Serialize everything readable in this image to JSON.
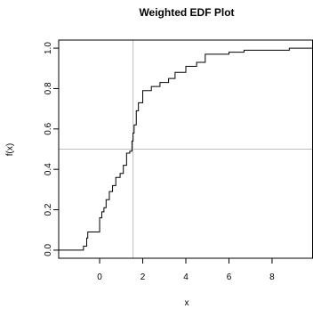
{
  "chart_data": {
    "type": "line",
    "title": "Weighted EDF Plot",
    "xlabel": "x",
    "ylabel": "f(x)",
    "xlim": [
      -1.9,
      9.9
    ],
    "ylim": [
      -0.04,
      1.04
    ],
    "x_ticks": [
      0,
      2,
      4,
      6,
      8
    ],
    "x_tick_labels": [
      "0",
      "2",
      "4",
      "6",
      "8"
    ],
    "y_ticks": [
      0.0,
      0.2,
      0.4,
      0.6,
      0.8,
      1.0
    ],
    "y_tick_labels": [
      "0.0",
      "0.2",
      "0.4",
      "0.6",
      "0.8",
      "1.0"
    ],
    "grid": false,
    "reference_lines": {
      "vertical_x": 1.55,
      "horizontal_y": 0.5
    },
    "series": [
      {
        "step": "post",
        "x": [
          -1.9,
          -0.75,
          -0.6,
          -0.55,
          0.0,
          0.1,
          0.2,
          0.3,
          0.45,
          0.6,
          0.75,
          0.95,
          1.1,
          1.25,
          1.4,
          1.5,
          1.55,
          1.6,
          1.7,
          1.8,
          2.0,
          2.4,
          2.8,
          3.2,
          3.5,
          4.0,
          4.5,
          4.9,
          6.0,
          6.7,
          8.8,
          9.9
        ],
        "y": [
          0.0,
          0.02,
          0.06,
          0.09,
          0.16,
          0.19,
          0.21,
          0.25,
          0.29,
          0.32,
          0.36,
          0.38,
          0.42,
          0.48,
          0.49,
          0.54,
          0.58,
          0.62,
          0.69,
          0.73,
          0.79,
          0.81,
          0.83,
          0.85,
          0.88,
          0.91,
          0.93,
          0.97,
          0.98,
          0.99,
          1.0,
          1.0
        ]
      }
    ]
  }
}
